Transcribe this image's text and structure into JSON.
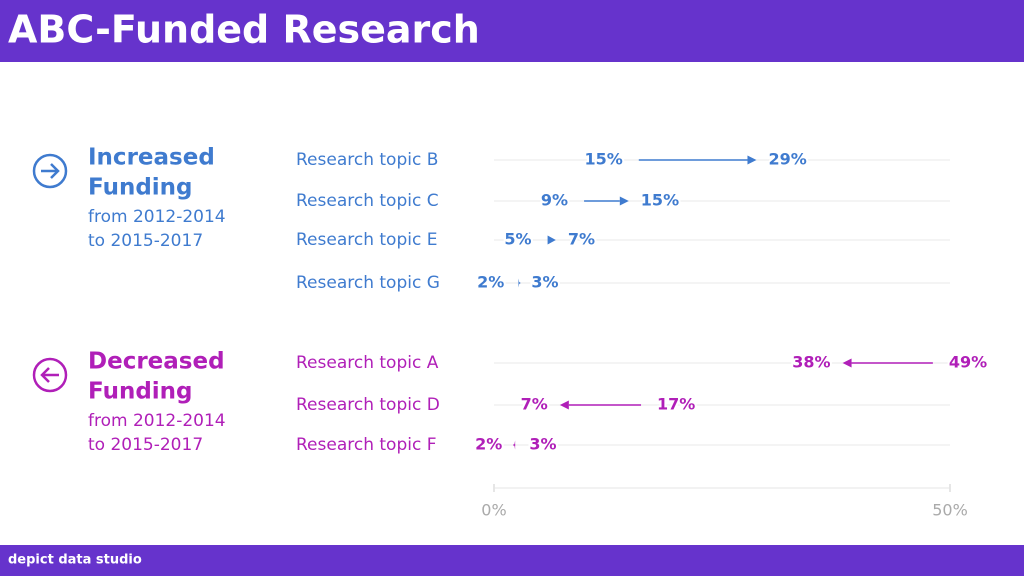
{
  "chart_data": {
    "type": "arrow",
    "title": "ABC-Funded Research",
    "source": "depict data studio",
    "xlim": [
      0,
      50
    ],
    "xticks": [
      {
        "value": 0,
        "label": "0%"
      },
      {
        "value": 50,
        "label": "50%"
      }
    ],
    "groups": [
      {
        "label": [
          "Increased",
          "Funding"
        ],
        "sublabel": [
          "from 2012-2014",
          "to 2015-2017"
        ],
        "color": "#3f7bcf",
        "categories": [
          "Research topic B",
          "Research topic C",
          "Research topic E",
          "Research topic G"
        ],
        "start": [
          15,
          9,
          5,
          2
        ],
        "end": [
          29,
          15,
          7,
          3
        ],
        "start_labels": [
          "15%",
          "9%",
          "5%",
          "2%"
        ],
        "end_labels": [
          "29%",
          "15%",
          "7%",
          "3%"
        ]
      },
      {
        "label": [
          "Decreased",
          "Funding"
        ],
        "sublabel": [
          "from 2012-2014",
          "to 2015-2017"
        ],
        "color": "#b01fb8",
        "categories": [
          "Research topic A",
          "Research topic D",
          "Research topic F"
        ],
        "start": [
          49,
          17,
          3
        ],
        "end": [
          38,
          7,
          2
        ],
        "start_labels": [
          "49%",
          "17%",
          "3%"
        ],
        "end_labels": [
          "38%",
          "7%",
          "2%"
        ]
      }
    ]
  }
}
